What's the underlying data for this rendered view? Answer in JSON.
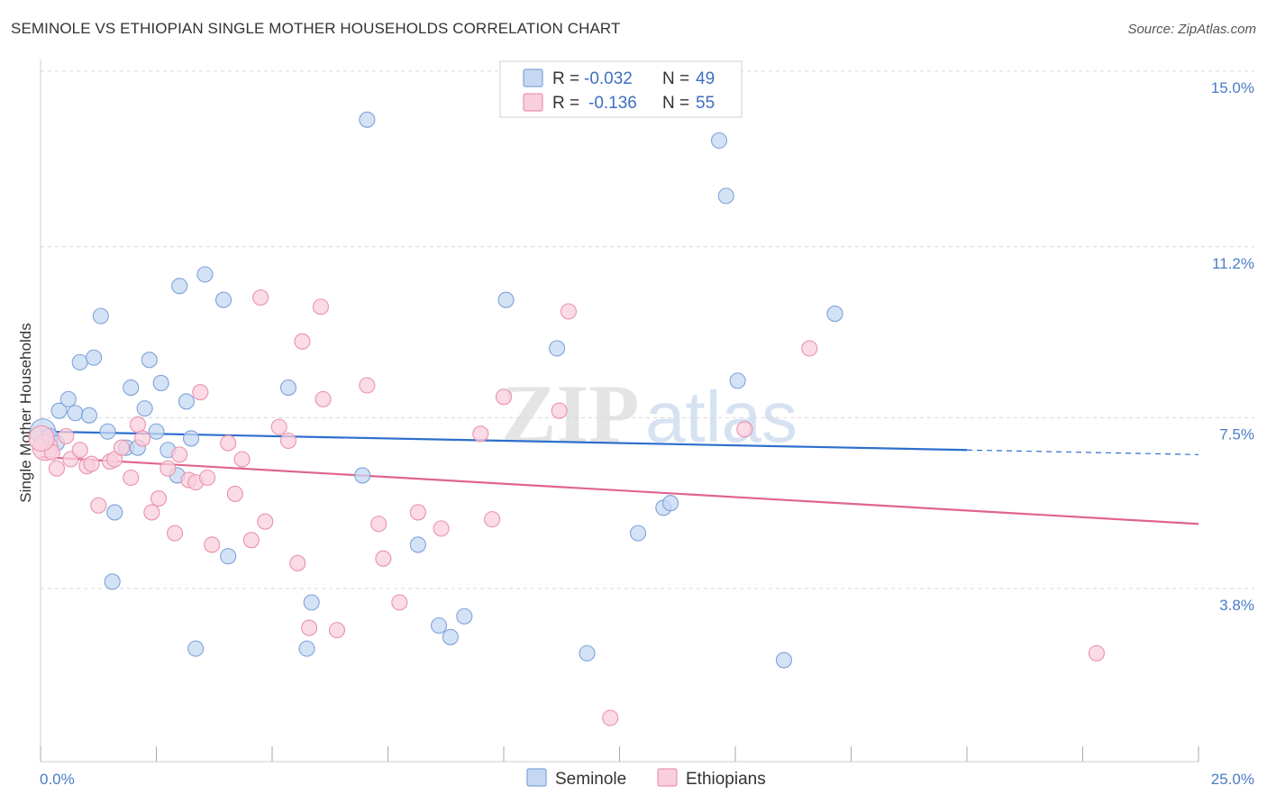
{
  "title": "SEMINOLE VS ETHIOPIAN SINGLE MOTHER HOUSEHOLDS CORRELATION CHART",
  "source": "Source: ZipAtlas.com",
  "watermark": {
    "zip": "ZIP",
    "atlas": "atlas"
  },
  "legend": {
    "r_label": "R =",
    "n_label": "N =",
    "rows": [
      {
        "r": "-0.032",
        "n": "49"
      },
      {
        "r": "-0.136",
        "n": "55"
      }
    ]
  },
  "bottom_legend": [
    "Seminole",
    "Ethiopians"
  ],
  "colors": {
    "seminole_fill": "#c5d8f3",
    "seminole_stroke": "#7fa3d8",
    "seminole_line": "#2d6fcc",
    "ethiopian_fill": "#f9cfdc",
    "ethiopian_stroke": "#e993ae",
    "ethiopian_line": "#e0648f",
    "grid": "#d8d8d8",
    "tick_label": "#4a7cc7"
  },
  "chart_data": {
    "type": "scatter",
    "title": "SEMINOLE VS ETHIOPIAN SINGLE MOTHER HOUSEHOLDS CORRELATION CHART",
    "xlabel": "",
    "ylabel": "Single Mother Households",
    "xlim": [
      0,
      25
    ],
    "ylim": [
      0,
      15.5
    ],
    "x_tick_labels": [
      "0.0%",
      "25.0%"
    ],
    "y_ticks": [
      3.8,
      7.5,
      11.2,
      15.0
    ],
    "y_tick_labels": [
      "3.8%",
      "7.5%",
      "11.2%",
      "15.0%"
    ],
    "grid": true,
    "legend_position": "top-center",
    "series": [
      {
        "name": "Seminole",
        "r": -0.032,
        "n": 49,
        "trend": {
          "x0": 0,
          "y0": 7.2,
          "x1": 20,
          "y1": 6.8,
          "dash_to_x": 25,
          "dash_y": 6.7
        },
        "points": [
          [
            0.05,
            7.2
          ],
          [
            0.2,
            7.1
          ],
          [
            0.35,
            6.95
          ],
          [
            0.4,
            7.65
          ],
          [
            0.6,
            7.9
          ],
          [
            0.75,
            7.6
          ],
          [
            0.85,
            8.7
          ],
          [
            1.05,
            7.55
          ],
          [
            1.15,
            8.8
          ],
          [
            1.3,
            9.7
          ],
          [
            1.45,
            7.2
          ],
          [
            1.6,
            5.45
          ],
          [
            1.55,
            3.95
          ],
          [
            1.85,
            6.85
          ],
          [
            1.95,
            8.15
          ],
          [
            2.1,
            6.85
          ],
          [
            2.25,
            7.7
          ],
          [
            2.35,
            8.75
          ],
          [
            2.5,
            7.2
          ],
          [
            2.6,
            8.25
          ],
          [
            2.75,
            6.8
          ],
          [
            2.95,
            6.25
          ],
          [
            3.0,
            10.35
          ],
          [
            3.15,
            7.85
          ],
          [
            3.25,
            7.05
          ],
          [
            3.35,
            2.5
          ],
          [
            3.55,
            10.6
          ],
          [
            3.95,
            10.05
          ],
          [
            4.05,
            4.5
          ],
          [
            5.35,
            8.15
          ],
          [
            5.75,
            2.5
          ],
          [
            5.85,
            3.5
          ],
          [
            6.95,
            6.25
          ],
          [
            7.05,
            13.95
          ],
          [
            8.15,
            4.75
          ],
          [
            8.6,
            3.0
          ],
          [
            8.85,
            2.75
          ],
          [
            9.15,
            3.2
          ],
          [
            10.05,
            10.05
          ],
          [
            11.15,
            9.0
          ],
          [
            11.8,
            2.4
          ],
          [
            12.9,
            5.0
          ],
          [
            13.45,
            5.55
          ],
          [
            13.6,
            5.65
          ],
          [
            14.65,
            13.5
          ],
          [
            14.8,
            12.3
          ],
          [
            15.05,
            8.3
          ],
          [
            16.05,
            2.25
          ],
          [
            17.15,
            9.75
          ]
        ]
      },
      {
        "name": "Ethiopians",
        "r": -0.136,
        "n": 55,
        "trend": {
          "x0": 0,
          "y0": 6.65,
          "x1": 25,
          "y1": 5.2
        },
        "points": [
          [
            0.1,
            6.85
          ],
          [
            0.25,
            6.75
          ],
          [
            0.35,
            6.4
          ],
          [
            0.55,
            7.1
          ],
          [
            0.65,
            6.6
          ],
          [
            0.85,
            6.8
          ],
          [
            1.0,
            6.45
          ],
          [
            1.1,
            6.5
          ],
          [
            1.25,
            5.6
          ],
          [
            1.5,
            6.55
          ],
          [
            1.6,
            6.6
          ],
          [
            1.75,
            6.85
          ],
          [
            1.95,
            6.2
          ],
          [
            2.1,
            7.35
          ],
          [
            2.2,
            7.05
          ],
          [
            2.4,
            5.45
          ],
          [
            2.55,
            5.75
          ],
          [
            2.75,
            6.4
          ],
          [
            2.9,
            5.0
          ],
          [
            3.0,
            6.7
          ],
          [
            3.2,
            6.15
          ],
          [
            3.35,
            6.1
          ],
          [
            3.45,
            8.05
          ],
          [
            3.6,
            6.2
          ],
          [
            3.7,
            4.75
          ],
          [
            4.05,
            6.95
          ],
          [
            4.2,
            5.85
          ],
          [
            4.35,
            6.6
          ],
          [
            4.55,
            4.85
          ],
          [
            4.75,
            10.1
          ],
          [
            4.85,
            5.25
          ],
          [
            5.15,
            7.3
          ],
          [
            5.35,
            7.0
          ],
          [
            5.55,
            4.35
          ],
          [
            5.65,
            9.15
          ],
          [
            5.8,
            2.95
          ],
          [
            6.05,
            9.9
          ],
          [
            6.1,
            7.9
          ],
          [
            6.4,
            2.9
          ],
          [
            7.05,
            8.2
          ],
          [
            7.3,
            5.2
          ],
          [
            7.4,
            4.45
          ],
          [
            7.75,
            3.5
          ],
          [
            8.15,
            5.45
          ],
          [
            8.65,
            5.1
          ],
          [
            9.5,
            7.15
          ],
          [
            9.75,
            5.3
          ],
          [
            10.0,
            7.95
          ],
          [
            11.2,
            7.65
          ],
          [
            11.4,
            9.8
          ],
          [
            12.3,
            1.0
          ],
          [
            15.2,
            7.25
          ],
          [
            16.6,
            9.0
          ],
          [
            22.8,
            2.4
          ],
          [
            0.02,
            7.05
          ]
        ]
      }
    ]
  }
}
